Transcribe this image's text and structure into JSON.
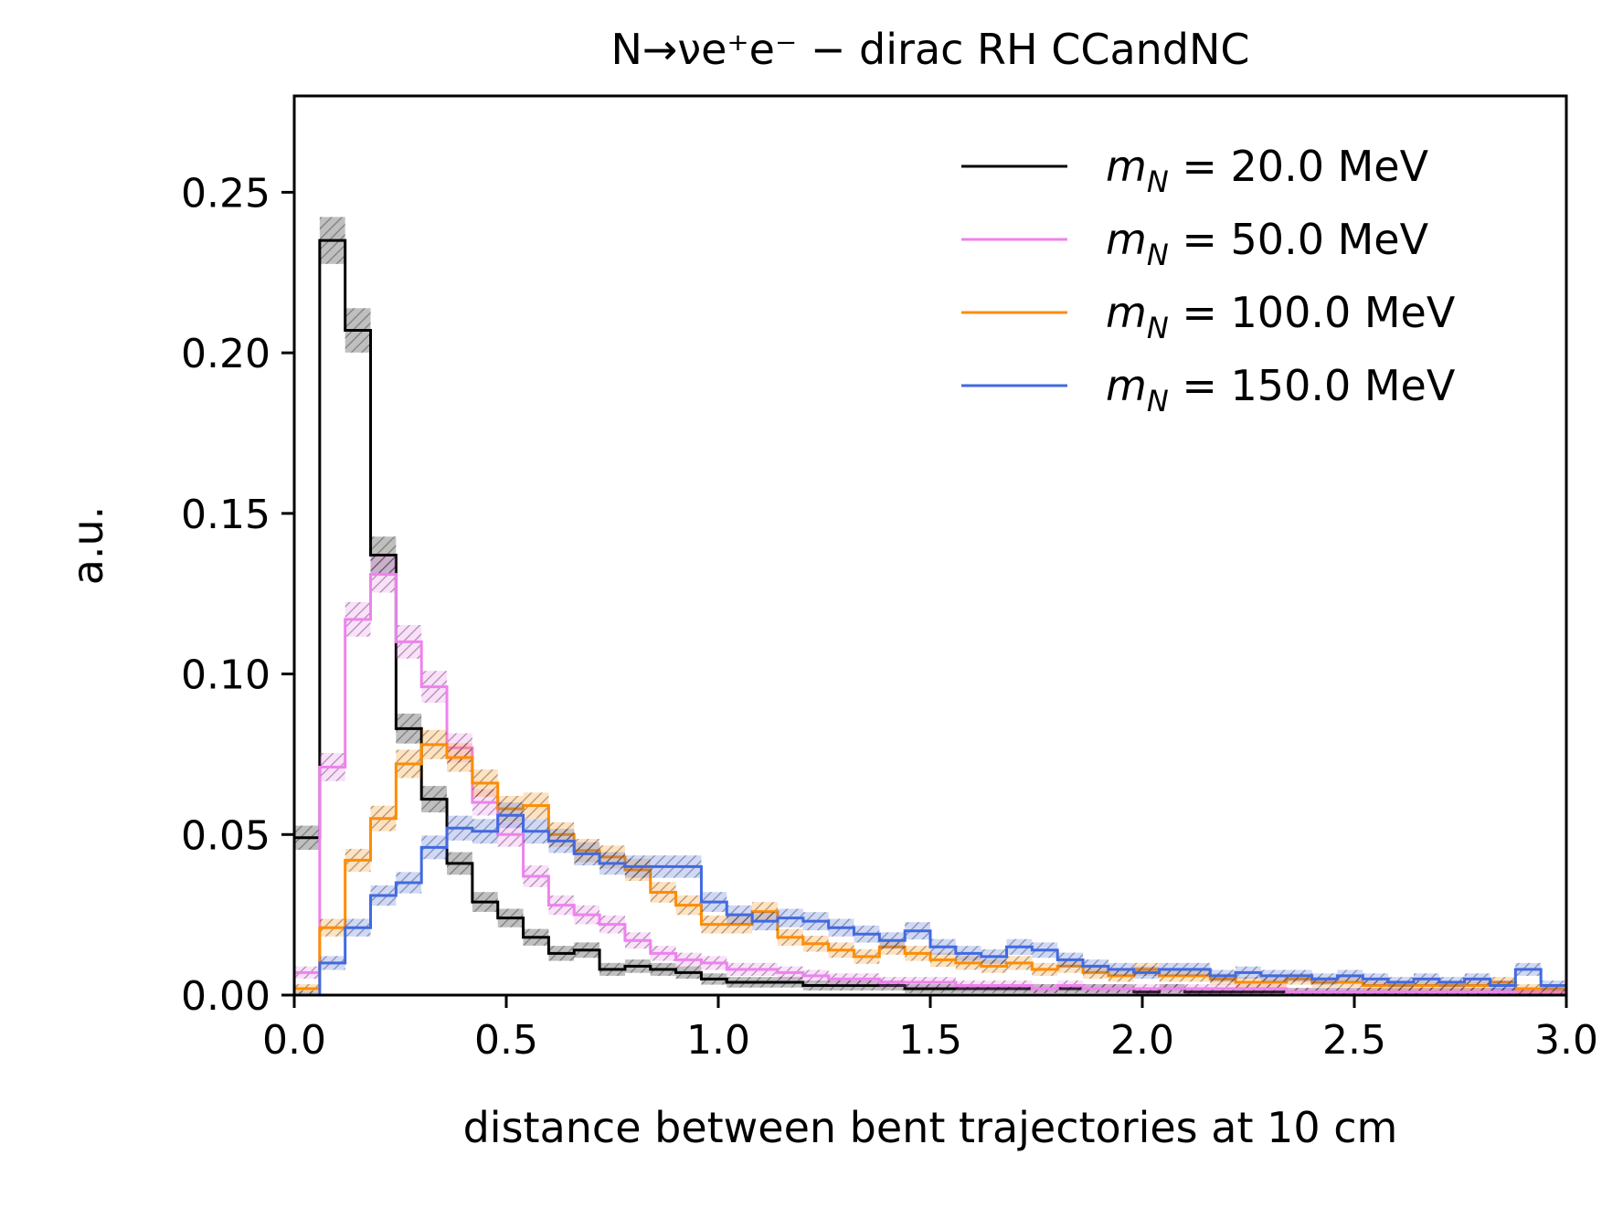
{
  "chart_data": {
    "type": "histogram-step",
    "title": "N→νe⁺e⁻ − dirac RH CCandNC",
    "xlabel": "distance between bent trajectories at 10 cm",
    "ylabel": "a.u.",
    "xlim": [
      0.0,
      3.0
    ],
    "ylim": [
      0.0,
      0.28
    ],
    "xticks": [
      "0.0",
      "0.5",
      "1.0",
      "1.5",
      "2.0",
      "2.5",
      "3.0"
    ],
    "yticks": [
      "0.00",
      "0.05",
      "0.10",
      "0.15",
      "0.20",
      "0.25"
    ],
    "legend_position": "top-right",
    "bin_width": 0.06,
    "bin_edges_start": 0.0,
    "series": [
      {
        "name": "m_N = 20.0 MeV",
        "label_parts": {
          "var": "m",
          "sub": "N",
          "rest": " = 20.0 MeV"
        },
        "color": "#000000",
        "values": [
          0.049,
          0.235,
          0.207,
          0.137,
          0.083,
          0.061,
          0.041,
          0.029,
          0.024,
          0.018,
          0.013,
          0.014,
          0.008,
          0.009,
          0.008,
          0.007,
          0.005,
          0.004,
          0.004,
          0.004,
          0.003,
          0.003,
          0.003,
          0.003,
          0.002,
          0.002,
          0.002,
          0.002,
          0.002,
          0.002,
          0.002,
          0.002,
          0.002,
          0.001,
          0.002,
          0.001,
          0.001,
          0.001,
          0.001,
          0.001,
          0.001,
          0.001,
          0.001,
          0.001,
          0.001,
          0.001,
          0.001,
          0.001,
          0.001,
          0.001
        ]
      },
      {
        "name": "m_N = 50.0 MeV",
        "label_parts": {
          "var": "m",
          "sub": "N",
          "rest": " = 50.0 MeV"
        },
        "color": "#EE82EE",
        "values": [
          0.007,
          0.071,
          0.117,
          0.131,
          0.11,
          0.096,
          0.077,
          0.06,
          0.05,
          0.037,
          0.028,
          0.025,
          0.022,
          0.017,
          0.013,
          0.011,
          0.01,
          0.008,
          0.008,
          0.007,
          0.006,
          0.005,
          0.005,
          0.004,
          0.004,
          0.004,
          0.003,
          0.003,
          0.003,
          0.002,
          0.003,
          0.002,
          0.002,
          0.002,
          0.002,
          0.002,
          0.002,
          0.002,
          0.002,
          0.001,
          0.001,
          0.001,
          0.001,
          0.001,
          0.001,
          0.001,
          0.001,
          0.001,
          0.001,
          0.001
        ]
      },
      {
        "name": "m_N = 100.0 MeV",
        "label_parts": {
          "var": "m",
          "sub": "N",
          "rest": " = 100.0 MeV"
        },
        "color": "#FF8C00",
        "values": [
          0.002,
          0.021,
          0.042,
          0.055,
          0.072,
          0.078,
          0.074,
          0.066,
          0.058,
          0.059,
          0.05,
          0.045,
          0.043,
          0.039,
          0.032,
          0.028,
          0.022,
          0.022,
          0.026,
          0.018,
          0.016,
          0.014,
          0.012,
          0.015,
          0.013,
          0.011,
          0.01,
          0.009,
          0.01,
          0.008,
          0.009,
          0.007,
          0.006,
          0.008,
          0.006,
          0.006,
          0.005,
          0.004,
          0.004,
          0.005,
          0.004,
          0.004,
          0.003,
          0.003,
          0.003,
          0.003,
          0.003,
          0.004,
          0.002,
          0.002
        ]
      },
      {
        "name": "m_N = 150.0 MeV",
        "label_parts": {
          "var": "m",
          "sub": "N",
          "rest": " = 150.0 MeV"
        },
        "color": "#4169E1",
        "values": [
          0.0,
          0.01,
          0.021,
          0.031,
          0.035,
          0.046,
          0.052,
          0.051,
          0.056,
          0.051,
          0.048,
          0.044,
          0.041,
          0.04,
          0.04,
          0.04,
          0.029,
          0.025,
          0.023,
          0.024,
          0.023,
          0.021,
          0.019,
          0.017,
          0.02,
          0.015,
          0.013,
          0.012,
          0.015,
          0.014,
          0.011,
          0.009,
          0.008,
          0.007,
          0.008,
          0.008,
          0.006,
          0.007,
          0.006,
          0.006,
          0.005,
          0.006,
          0.005,
          0.004,
          0.005,
          0.004,
          0.005,
          0.003,
          0.008,
          0.003
        ]
      }
    ]
  }
}
